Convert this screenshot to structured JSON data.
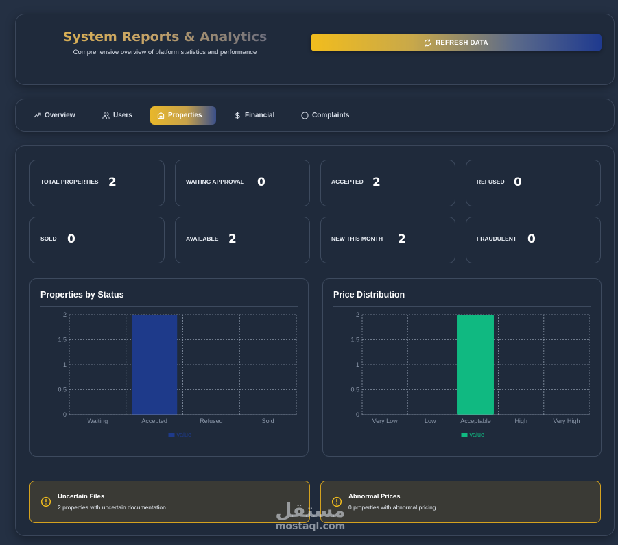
{
  "header": {
    "title": "System Reports & Analytics",
    "subtitle": "Comprehensive overview of platform statistics and performance",
    "refresh_label": "REFRESH DATA"
  },
  "tabs": [
    {
      "label": "Overview",
      "icon": "trending-up-icon",
      "active": false
    },
    {
      "label": "Users",
      "icon": "users-icon",
      "active": false
    },
    {
      "label": "Properties",
      "icon": "home-icon",
      "active": true
    },
    {
      "label": "Financial",
      "icon": "dollar-icon",
      "active": false
    },
    {
      "label": "Complaints",
      "icon": "alert-circle-icon",
      "active": false
    }
  ],
  "stats": [
    {
      "label": "TOTAL PROPERTIES",
      "value": "2"
    },
    {
      "label": "WAITING APPROVAL",
      "value": "0"
    },
    {
      "label": "ACCEPTED",
      "value": "2"
    },
    {
      "label": "REFUSED",
      "value": "0"
    },
    {
      "label": "SOLD",
      "value": "0"
    },
    {
      "label": "AVAILABLE",
      "value": "2"
    },
    {
      "label": "NEW THIS MONTH",
      "value": "2"
    },
    {
      "label": "FRAUDULENT",
      "value": "0"
    }
  ],
  "chart_data": [
    {
      "type": "bar",
      "title": "Properties by Status",
      "categories": [
        "Waiting",
        "Accepted",
        "Refused",
        "Sold"
      ],
      "series": [
        {
          "name": "value",
          "values": [
            0,
            2,
            0,
            0
          ],
          "color": "#1e3a8a"
        }
      ],
      "yticks": [
        "0",
        "0.5",
        "1",
        "1.5",
        "2"
      ],
      "ylim": [
        0,
        2
      ],
      "grid": true,
      "legend": "bottom"
    },
    {
      "type": "bar",
      "title": "Price Distribution",
      "categories": [
        "Very Low",
        "Low",
        "Acceptable",
        "High",
        "Very High"
      ],
      "series": [
        {
          "name": "value",
          "values": [
            0,
            0,
            2,
            0,
            0
          ],
          "color": "#10b981"
        }
      ],
      "yticks": [
        "0",
        "0.5",
        "1",
        "1.5",
        "2"
      ],
      "ylim": [
        0,
        2
      ],
      "grid": true,
      "legend": "bottom"
    }
  ],
  "alerts": [
    {
      "title": "Uncertain Files",
      "text": "2 properties with uncertain documentation",
      "icon": "warning-circle-icon"
    },
    {
      "title": "Abnormal Prices",
      "text": "0 properties with abnormal pricing",
      "icon": "warning-circle-icon"
    }
  ],
  "colors": {
    "accent": "#f2bd1d",
    "navy": "#1e3a8a",
    "green": "#10b981",
    "warning": "#d4a21f"
  },
  "watermark": {
    "arabic": "مستقل",
    "latin": "mostaql.com"
  }
}
